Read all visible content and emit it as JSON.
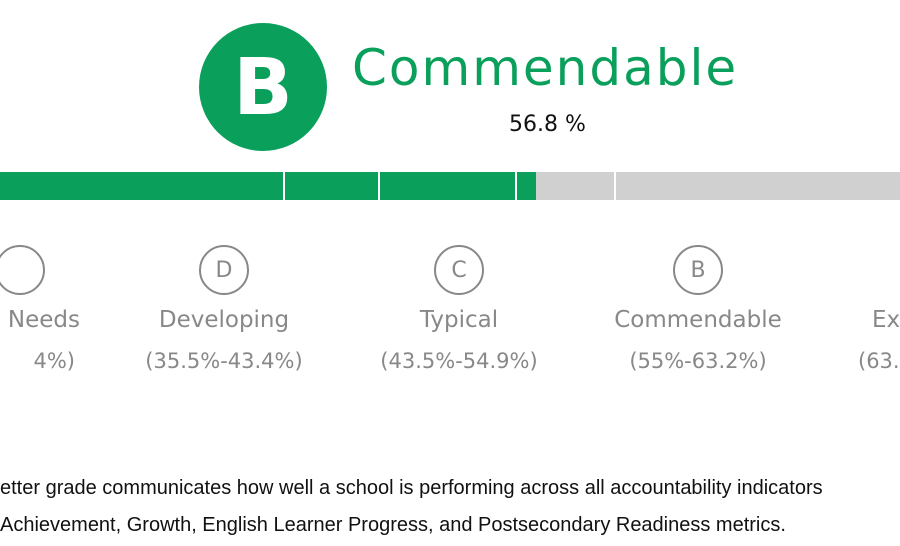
{
  "header": {
    "grade_letter": "B",
    "grade_label": "Commendable",
    "percent_text": "56.8 %",
    "percent_value": 56.8
  },
  "colors": {
    "accent": "#0aa05b",
    "bar_track": "#d0d0d0",
    "muted": "#888888",
    "text": "#111111"
  },
  "levels": [
    {
      "letter": "",
      "name": "Needs",
      "range": "4%)"
    },
    {
      "letter": "D",
      "name": "Developing",
      "range": "(35.5%-43.4%)"
    },
    {
      "letter": "C",
      "name": "Typical",
      "range": "(43.5%-54.9%)"
    },
    {
      "letter": "B",
      "name": "Commendable",
      "range": "(55%-63.2%)"
    },
    {
      "letter": "",
      "name": "Ex",
      "range": "(63."
    }
  ],
  "description": {
    "line1": "etter grade communicates how well a school is performing across all accountability indicators",
    "line2": "Achievement, Growth, English Learner Progress, and Postsecondary Readiness metrics."
  }
}
